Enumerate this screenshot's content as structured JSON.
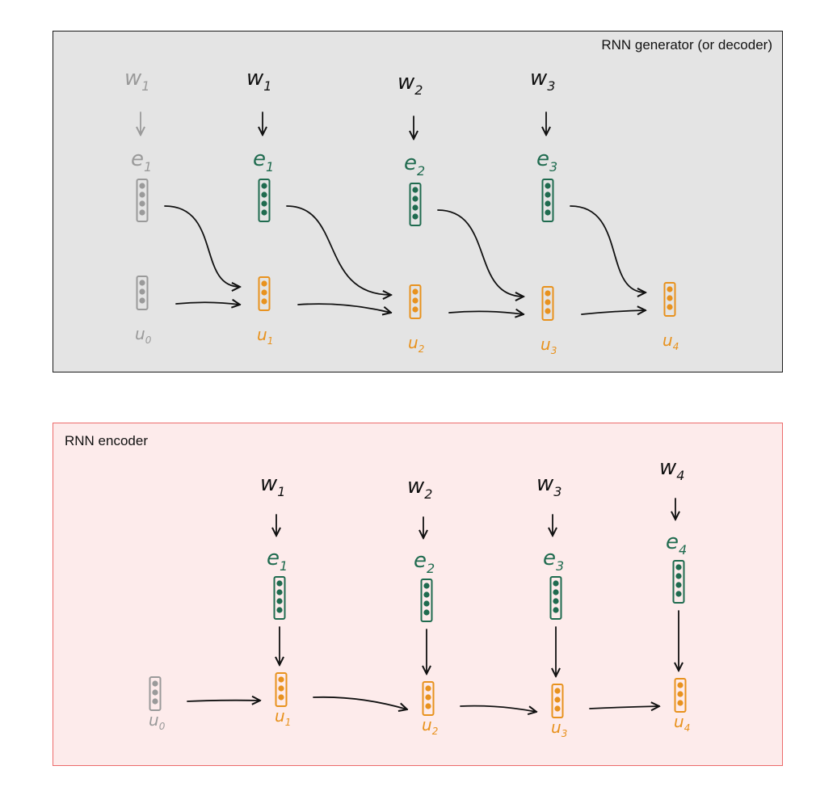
{
  "generator": {
    "title": "RNN generator (or decoder)",
    "columns": [
      {
        "word": "w",
        "word_sub": "1",
        "emb": "e",
        "emb_sub": "1",
        "hidden": "u",
        "hidden_sub": "0",
        "faded": true
      },
      {
        "word": "w",
        "word_sub": "1",
        "emb": "e",
        "emb_sub": "1",
        "hidden": "u",
        "hidden_sub": "1",
        "faded": false
      },
      {
        "word": "w",
        "word_sub": "2",
        "emb": "e",
        "emb_sub": "2",
        "hidden": "u",
        "hidden_sub": "2",
        "faded": false
      },
      {
        "word": "w",
        "word_sub": "3",
        "emb": "e",
        "emb_sub": "3",
        "hidden": "u",
        "hidden_sub": "3",
        "faded": false
      },
      {
        "word": "",
        "word_sub": "",
        "emb": "",
        "emb_sub": "",
        "hidden": "u",
        "hidden_sub": "4",
        "faded": false
      }
    ]
  },
  "encoder": {
    "title": "RNN encoder",
    "columns": [
      {
        "word": "",
        "word_sub": "",
        "emb": "",
        "emb_sub": "",
        "hidden": "u",
        "hidden_sub": "0",
        "faded": true
      },
      {
        "word": "w",
        "word_sub": "1",
        "emb": "e",
        "emb_sub": "1",
        "hidden": "u",
        "hidden_sub": "1",
        "faded": false
      },
      {
        "word": "w",
        "word_sub": "2",
        "emb": "e",
        "emb_sub": "2",
        "hidden": "u",
        "hidden_sub": "2",
        "faded": false
      },
      {
        "word": "w",
        "word_sub": "3",
        "emb": "e",
        "emb_sub": "3",
        "hidden": "u",
        "hidden_sub": "3",
        "faded": false
      },
      {
        "word": "w",
        "word_sub": "4",
        "emb": "e",
        "emb_sub": "4",
        "hidden": "u",
        "hidden_sub": "4",
        "faded": false
      }
    ]
  },
  "colors": {
    "word": "#111111",
    "embedding": "#1f6b4f",
    "hidden": "#e8921e",
    "faded": "#9a9a9a",
    "arrow": "#111111",
    "generator_bg": "#e4e4e4",
    "encoder_bg": "#fdebeb",
    "encoder_border": "#ec6b6b"
  }
}
